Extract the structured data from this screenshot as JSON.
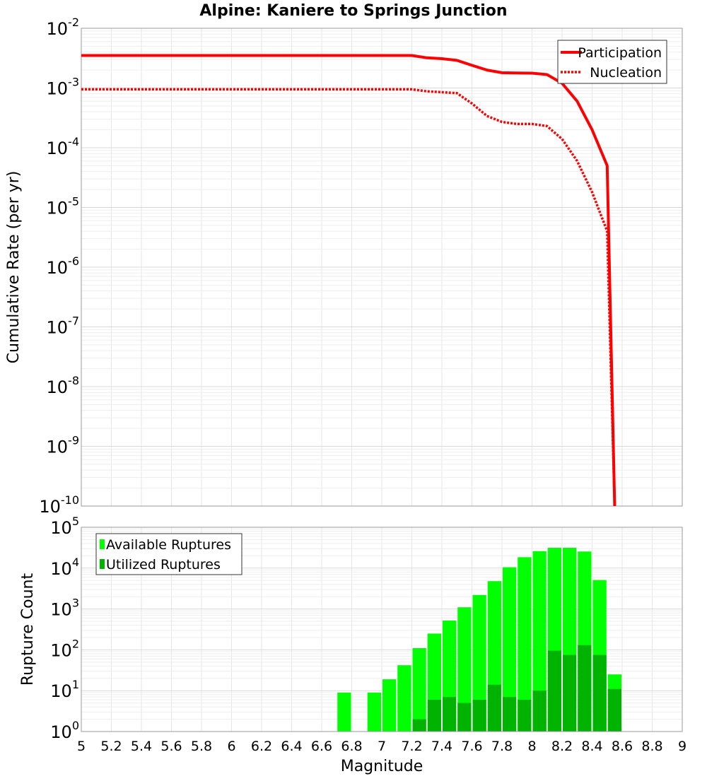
{
  "title": "Alpine: Kaniere to Springs Junction",
  "chart_data": [
    {
      "type": "line",
      "log_y": true,
      "ylabel": "Cumulative Rate (per yr)",
      "xlim": [
        5,
        9
      ],
      "ylim_exponents": [
        -10,
        -2
      ],
      "y_tick_exponents": [
        -2,
        -3,
        -4,
        -5,
        -6,
        -7,
        -8,
        -9,
        -10
      ],
      "legend_position": "top-right",
      "grid": true,
      "series": [
        {
          "name": "Participation",
          "style": "solid",
          "color": "#ff0000",
          "x": [
            5.0,
            7.2,
            7.3,
            7.4,
            7.5,
            7.6,
            7.7,
            7.8,
            7.9,
            8.0,
            8.1,
            8.2,
            8.3,
            8.4,
            8.5,
            8.55
          ],
          "y": [
            0.0035,
            0.0035,
            0.0032,
            0.0031,
            0.0029,
            0.0024,
            0.002,
            0.0018,
            0.00178,
            0.00177,
            0.00168,
            0.0012,
            0.0006,
            0.0002,
            5e-05,
            1e-10
          ]
        },
        {
          "name": "Nucleation",
          "style": "dotted",
          "color": "#ff0000",
          "x": [
            5.0,
            7.2,
            7.3,
            7.4,
            7.5,
            7.6,
            7.7,
            7.8,
            7.9,
            8.0,
            8.1,
            8.2,
            8.3,
            8.4,
            8.5,
            8.55
          ],
          "y": [
            0.00095,
            0.00095,
            0.00088,
            0.00085,
            0.00082,
            0.00055,
            0.00034,
            0.00027,
            0.00025,
            0.00025,
            0.00023,
            0.00014,
            6e-05,
            1.8e-05,
            4e-06,
            1e-10
          ]
        }
      ]
    },
    {
      "type": "bar",
      "log_y": true,
      "xlabel": "Magnitude",
      "ylabel": "Rupture Count",
      "xlim": [
        5,
        9
      ],
      "ylim_exponents": [
        0,
        5
      ],
      "y_tick_exponents": [
        0,
        1,
        2,
        3,
        4,
        5
      ],
      "x_ticks": [
        "5",
        "5.2",
        "5.4",
        "5.6",
        "5.8",
        "6",
        "6.2",
        "6.4",
        "6.6",
        "6.8",
        "7",
        "7.2",
        "7.4",
        "7.6",
        "7.8",
        "8",
        "8.2",
        "8.4",
        "8.6",
        "8.8",
        "9"
      ],
      "legend_position": "top-left",
      "grid": true,
      "bin_width": 0.1,
      "series": [
        {
          "name": "Available Ruptures",
          "color": "#00ff00",
          "x": [
            6.7,
            6.9,
            7.0,
            7.1,
            7.2,
            7.3,
            7.4,
            7.5,
            7.6,
            7.7,
            7.8,
            7.9,
            8.0,
            8.1,
            8.2,
            8.3,
            8.4,
            8.5
          ],
          "values": [
            9,
            9,
            19,
            42,
            110,
            250,
            520,
            1100,
            2200,
            4800,
            10500,
            18500,
            26000,
            31500,
            31500,
            25500,
            5100,
            25
          ]
        },
        {
          "name": "Utilized Ruptures",
          "color": "#00b300",
          "x": [
            7.1,
            7.2,
            7.3,
            7.4,
            7.5,
            7.6,
            7.7,
            7.8,
            7.9,
            8.0,
            8.1,
            8.2,
            8.3,
            8.4,
            8.5
          ],
          "values": [
            1,
            2,
            6,
            7,
            5,
            6,
            14,
            7,
            6,
            10,
            95,
            75,
            130,
            75,
            11
          ]
        }
      ]
    }
  ]
}
